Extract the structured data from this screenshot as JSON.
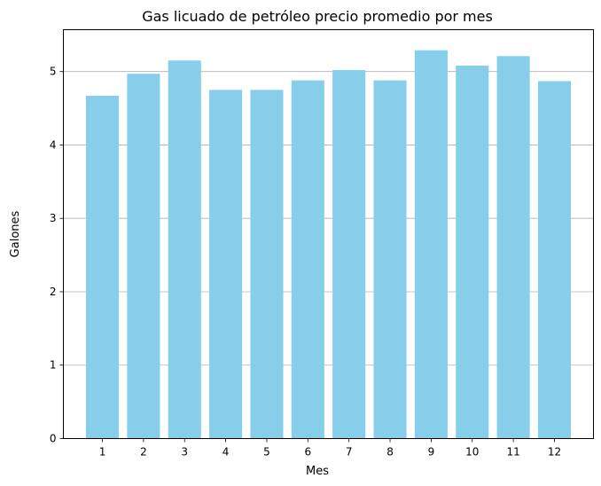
{
  "chart_data": {
    "type": "bar",
    "title": "Gas licuado de petróleo precio promedio por mes",
    "xlabel": "Mes",
    "ylabel": "Galones",
    "categories": [
      "1",
      "2",
      "3",
      "4",
      "5",
      "6",
      "7",
      "8",
      "9",
      "10",
      "11",
      "12"
    ],
    "values": [
      4.67,
      4.97,
      5.15,
      4.75,
      4.75,
      4.88,
      5.02,
      4.88,
      5.29,
      5.08,
      5.21,
      4.87
    ],
    "ylim": [
      0,
      5.57
    ],
    "yticks": [
      "0",
      "1",
      "2",
      "3",
      "4",
      "5"
    ],
    "grid": "horizontal",
    "bar_color": "#87ceeb",
    "grid_color": "#b0b0b0"
  }
}
